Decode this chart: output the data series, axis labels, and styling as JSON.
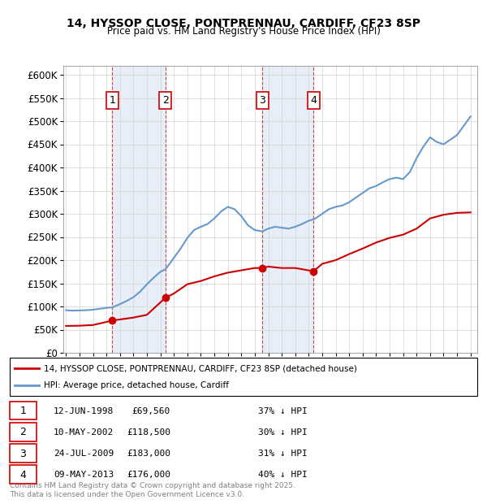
{
  "title_line1": "14, HYSSOP CLOSE, PONTPRENNAU, CARDIFF, CF23 8SP",
  "title_line2": "Price paid vs. HM Land Registry's House Price Index (HPI)",
  "ylabel": "",
  "xlabel": "",
  "ylim": [
    0,
    620000
  ],
  "yticks": [
    0,
    50000,
    100000,
    150000,
    200000,
    250000,
    300000,
    350000,
    400000,
    450000,
    500000,
    550000,
    600000
  ],
  "ytick_labels": [
    "£0",
    "£50K",
    "£100K",
    "£150K",
    "£200K",
    "£250K",
    "£300K",
    "£350K",
    "£400K",
    "£450K",
    "£500K",
    "£550K",
    "£600K"
  ],
  "legend_line1": "14, HYSSOP CLOSE, PONTPRENNAU, CARDIFF, CF23 8SP (detached house)",
  "legend_line2": "HPI: Average price, detached house, Cardiff",
  "sale_color": "#cc0000",
  "hpi_color": "#6699cc",
  "transactions": [
    {
      "num": 1,
      "date": "12-JUN-1998",
      "price": 69560,
      "pct": "37%",
      "x": 1998.44
    },
    {
      "num": 2,
      "date": "10-MAY-2002",
      "price": 118500,
      "pct": "30%",
      "x": 2002.36
    },
    {
      "num": 3,
      "date": "24-JUL-2009",
      "price": 183000,
      "pct": "31%",
      "x": 2009.56
    },
    {
      "num": 4,
      "date": "09-MAY-2013",
      "price": 176000,
      "pct": "40%",
      "x": 2013.36
    }
  ],
  "footnote": "Contains HM Land Registry data © Crown copyright and database right 2025.\nThis data is licensed under the Open Government Licence v3.0.",
  "hpi_data_x": [
    1995,
    1995.5,
    1996,
    1996.5,
    1997,
    1997.5,
    1998,
    1998.44,
    1999,
    1999.5,
    2000,
    2000.5,
    2001,
    2001.5,
    2002,
    2002.36,
    2002.5,
    2003,
    2003.5,
    2004,
    2004.5,
    2005,
    2005.5,
    2006,
    2006.5,
    2007,
    2007.5,
    2008,
    2008.5,
    2009,
    2009.56,
    2010,
    2010.5,
    2011,
    2011.5,
    2012,
    2012.5,
    2013,
    2013.36,
    2013.5,
    2014,
    2014.5,
    2015,
    2015.5,
    2016,
    2016.5,
    2017,
    2017.5,
    2018,
    2018.5,
    2019,
    2019.5,
    2020,
    2020.5,
    2021,
    2021.5,
    2022,
    2022.5,
    2023,
    2023.5,
    2024,
    2024.5,
    2025
  ],
  "hpi_data_y": [
    92000,
    91000,
    91500,
    92000,
    93000,
    95000,
    97000,
    98000,
    105000,
    112000,
    120000,
    132000,
    148000,
    162000,
    175000,
    180000,
    185000,
    205000,
    225000,
    248000,
    265000,
    272000,
    278000,
    290000,
    305000,
    315000,
    310000,
    295000,
    275000,
    265000,
    262000,
    268000,
    272000,
    270000,
    268000,
    272000,
    278000,
    285000,
    288000,
    290000,
    300000,
    310000,
    315000,
    318000,
    325000,
    335000,
    345000,
    355000,
    360000,
    368000,
    375000,
    378000,
    375000,
    390000,
    420000,
    445000,
    465000,
    455000,
    450000,
    460000,
    470000,
    490000,
    510000
  ],
  "sale_data_x": [
    1995,
    1996,
    1997,
    1998.44,
    1999,
    2000,
    2001,
    2002.36,
    2003,
    2004,
    2005,
    2006,
    2007,
    2008,
    2009,
    2009.56,
    2010,
    2011,
    2012,
    2013.36,
    2014,
    2015,
    2016,
    2017,
    2018,
    2019,
    2020,
    2021,
    2022,
    2023,
    2024,
    2025
  ],
  "sale_data_y": [
    58000,
    58500,
    60000,
    69560,
    72000,
    76000,
    82000,
    118500,
    128000,
    148000,
    155000,
    165000,
    173000,
    178000,
    183000,
    183000,
    186000,
    183000,
    183000,
    176000,
    192000,
    200000,
    213000,
    225000,
    238000,
    248000,
    255000,
    268000,
    290000,
    298000,
    302000,
    303000
  ]
}
